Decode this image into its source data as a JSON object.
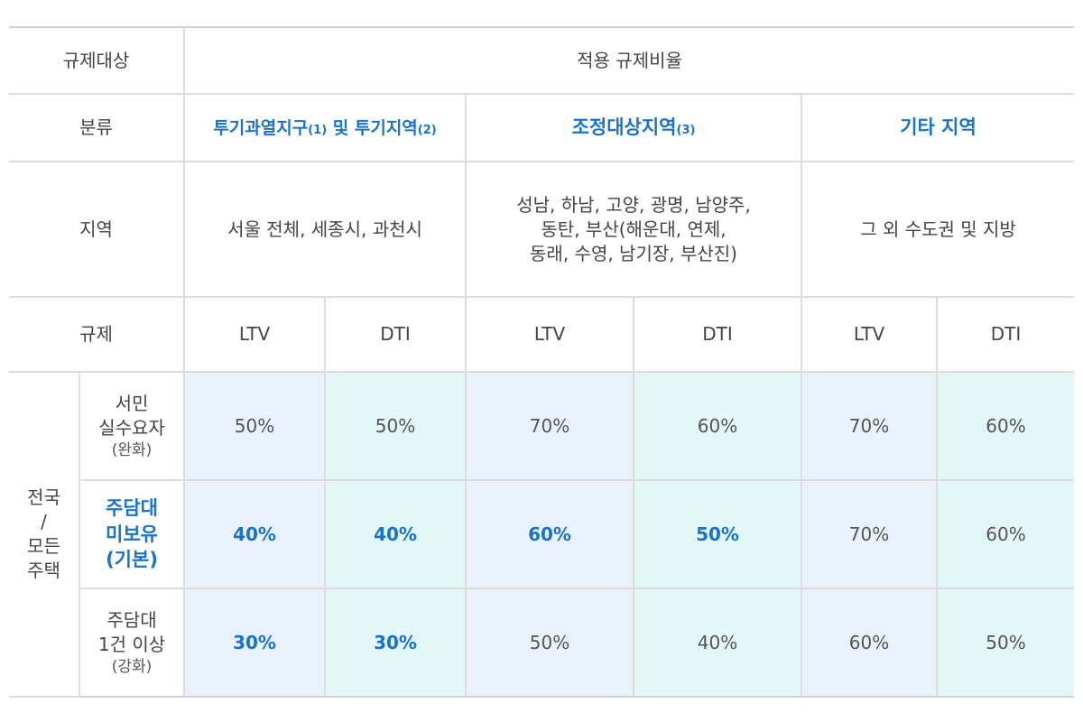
{
  "header": {
    "target_label": "규제대상",
    "applied_label": "적용 규제비율"
  },
  "classification": {
    "label": "분류",
    "groups": [
      {
        "name": "투기과열지구",
        "note1": "(1)",
        "conj": " 및 ",
        "name2": "투기지역",
        "note2": "(2)"
      },
      {
        "name": "조정대상지역",
        "note1": "(3)"
      },
      {
        "name": "기타 지역"
      }
    ]
  },
  "region": {
    "label": "지역",
    "values": [
      "서울 전체, 세종시, 과천시",
      [
        "성남, 하남, 고양, 광명, 남양주,",
        "동탄, 부산(해운대, 연제,",
        "동래, 수영, 남기장, 부산진)"
      ],
      "그 외 수도권 및 지방"
    ]
  },
  "regulation": {
    "label": "규제",
    "columns": [
      "LTV",
      "DTI",
      "LTV",
      "DTI",
      "LTV",
      "DTI"
    ]
  },
  "scope": {
    "lines": [
      "전국",
      "/",
      "모든",
      "주택"
    ]
  },
  "rows": [
    {
      "label_lines": [
        "서민",
        "실수요자"
      ],
      "note": "(완화)",
      "values": [
        "50%",
        "50%",
        "70%",
        "60%",
        "70%",
        "60%"
      ]
    },
    {
      "label_lines": [
        "주담대",
        "미보유",
        "(기본)"
      ],
      "values": [
        "40%",
        "40%",
        "60%",
        "50%",
        "70%",
        "60%"
      ]
    },
    {
      "label_lines": [
        "주담대",
        "1건 이상"
      ],
      "note": "(강화)",
      "values": [
        "30%",
        "30%",
        "50%",
        "40%",
        "60%",
        "50%"
      ]
    }
  ],
  "colors": {
    "accent": "#1a73c8",
    "ltv_bg": "#e9f2fa",
    "dti_bg": "#e3f6f8",
    "border": "#dcdcdc"
  }
}
